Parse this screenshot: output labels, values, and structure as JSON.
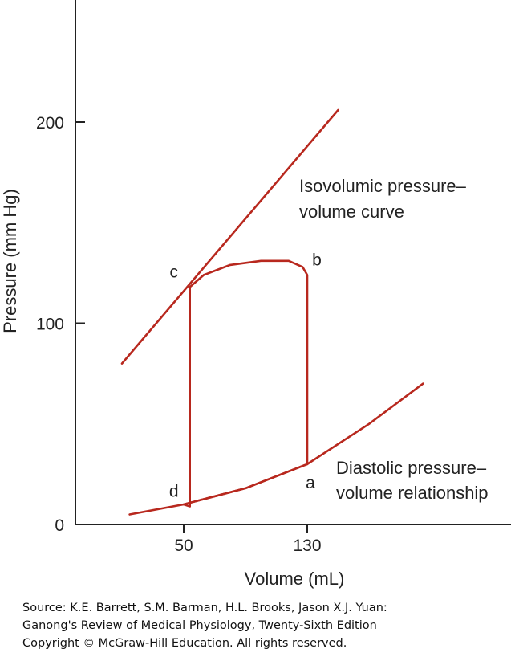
{
  "chart_data": {
    "type": "line",
    "title": "",
    "xlabel": "Volume (mL)",
    "ylabel": "Pressure (mm Hg)",
    "x_ticks": [
      "50",
      "130"
    ],
    "y_ticks": [
      "0",
      "100",
      "200"
    ],
    "grid": false,
    "colors": {
      "curve": "#b8281e",
      "axis": "#222222"
    },
    "series": [
      {
        "name": "Isovolumic pressure–volume curve",
        "points": [
          [
            10,
            80
          ],
          [
            150,
            206
          ]
        ]
      },
      {
        "name": "Diastolic pressure–volume relationship",
        "points": [
          [
            15,
            5
          ],
          [
            50,
            10
          ],
          [
            90,
            18
          ],
          [
            130,
            30
          ],
          [
            170,
            50
          ],
          [
            205,
            70
          ]
        ]
      },
      {
        "name": "Pressure–volume loop",
        "points": [
          [
            130,
            30
          ],
          [
            130,
            124
          ],
          [
            127,
            128
          ],
          [
            118,
            131
          ],
          [
            100,
            131
          ],
          [
            80,
            129
          ],
          [
            63,
            124
          ],
          [
            54,
            118
          ],
          [
            54,
            9
          ],
          [
            50,
            10
          ],
          [
            90,
            18
          ],
          [
            130,
            30
          ]
        ]
      }
    ],
    "point_labels": [
      {
        "label": "a",
        "x": 130,
        "y": 30
      },
      {
        "label": "b",
        "x": 130,
        "y": 124
      },
      {
        "label": "c",
        "x": 54,
        "y": 118
      },
      {
        "label": "d",
        "x": 54,
        "y": 9
      }
    ],
    "annotations": {
      "isovolumic": [
        "Isovolumic pressure–",
        "volume curve"
      ],
      "diastolic": [
        "Diastolic pressure–",
        "volume relationship"
      ]
    }
  },
  "source_lines": [
    "Source: K.E. Barrett, S.M. Barman, H.L. Brooks, Jason X.J. Yuan:",
    "Ganong's Review of Medical Physiology, Twenty-Sixth Edition",
    "Copyright © McGraw-Hill Education. All rights reserved."
  ]
}
